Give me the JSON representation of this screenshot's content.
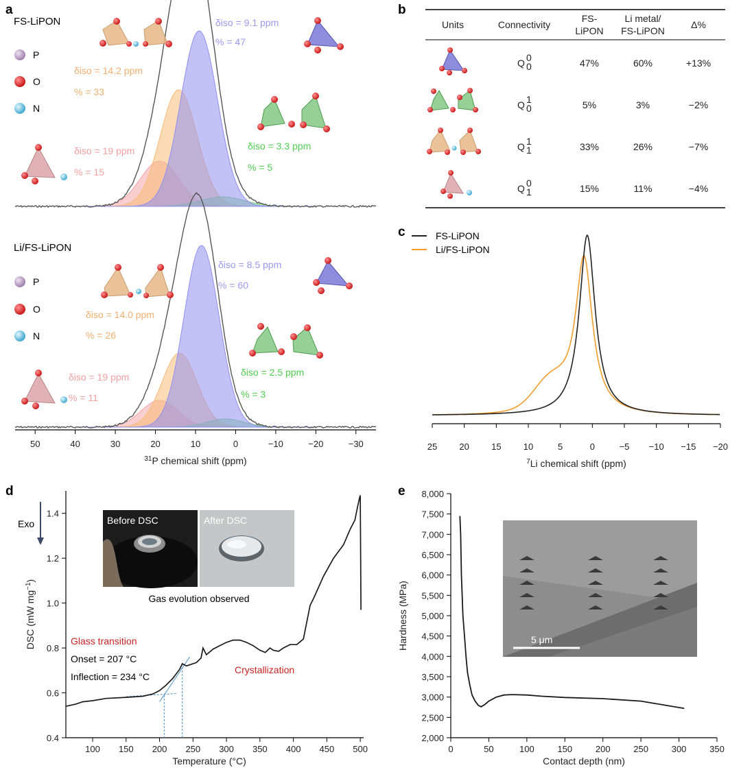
{
  "colors": {
    "P": "#b89bc2",
    "O": "#e02828",
    "N": "#5fc0e0",
    "blue": "#8f8ff0",
    "orange": "#f7bb7a",
    "pink": "#f4a5a5",
    "green": "#7ed67e",
    "exp": "#555555",
    "fs_li": "#222222",
    "li_li": "#f39c2a"
  },
  "panels": {
    "a": "a",
    "b": "b",
    "c": "c",
    "d": "d",
    "e": "e"
  },
  "legend": {
    "P": "P",
    "O": "O",
    "N": "N"
  },
  "chart_data": [
    {
      "id": "a_top",
      "type": "line",
      "title": "FS-LiPON",
      "xlabel": "31P chemical shift (ppm)",
      "xlim": [
        55,
        -35
      ],
      "xticks": [
        50,
        40,
        30,
        20,
        10,
        0,
        -10,
        -20,
        -30
      ],
      "components": [
        {
          "name": "Q00",
          "center": 9.1,
          "fraction_pct": 47,
          "label_delta": "δiso = 9.1 ppm",
          "label_pct": "% = 47",
          "color": "blue"
        },
        {
          "name": "Q10",
          "center": 3.3,
          "fraction_pct": 5,
          "label_delta": "δiso = 3.3 ppm",
          "label_pct": "% = 5",
          "color": "green"
        },
        {
          "name": "Q11",
          "center": 14.2,
          "fraction_pct": 33,
          "label_delta": "δiso = 14.2 ppm",
          "label_pct": "% = 33",
          "color": "orange"
        },
        {
          "name": "Q01",
          "center": 19,
          "fraction_pct": 15,
          "label_delta": "δiso = 19 ppm",
          "label_pct": "% = 15",
          "color": "pink"
        }
      ]
    },
    {
      "id": "a_bottom",
      "type": "line",
      "title": "Li/FS-LiPON",
      "xlabel": "31P chemical shift (ppm)",
      "xlim": [
        55,
        -35
      ],
      "xticks": [
        50,
        40,
        30,
        20,
        10,
        0,
        -10,
        -20,
        -30
      ],
      "components": [
        {
          "name": "Q00",
          "center": 8.5,
          "fraction_pct": 60,
          "label_delta": "δiso = 8.5 ppm",
          "label_pct": "% = 60",
          "color": "blue"
        },
        {
          "name": "Q10",
          "center": 2.5,
          "fraction_pct": 3,
          "label_delta": "δiso = 2.5 ppm",
          "label_pct": "% = 3",
          "color": "green"
        },
        {
          "name": "Q11",
          "center": 14.0,
          "fraction_pct": 26,
          "label_delta": "δiso = 14.0 ppm",
          "label_pct": "% = 26",
          "color": "orange"
        },
        {
          "name": "Q01",
          "center": 19,
          "fraction_pct": 11,
          "label_delta": "δiso = 19 ppm",
          "label_pct": "% = 11",
          "color": "pink"
        }
      ]
    },
    {
      "id": "b",
      "type": "table",
      "headers": [
        "Units",
        "Connectivity",
        "FS-LiPON",
        "Li metal/ FS-LiPON",
        "Δ%"
      ],
      "header_lines": {
        "fs": [
          "FS-",
          "LiPON"
        ],
        "li": [
          "Li metal/",
          "FS-LiPON"
        ]
      },
      "rows": [
        {
          "connectivity": "Q00",
          "Q": "Q",
          "sup": "0",
          "sub": "0",
          "fs": "47%",
          "li": "60%",
          "delta": "+13%"
        },
        {
          "connectivity": "Q10",
          "Q": "Q",
          "sup": "1",
          "sub": "0",
          "fs": "5%",
          "li": "3%",
          "delta": "−2%"
        },
        {
          "connectivity": "Q11",
          "Q": "Q",
          "sup": "1",
          "sub": "1",
          "fs": "33%",
          "li": "26%",
          "delta": "−7%"
        },
        {
          "connectivity": "Q01",
          "Q": "Q",
          "sup": "0",
          "sub": "1",
          "fs": "15%",
          "li": "11%",
          "delta": "−4%"
        }
      ]
    },
    {
      "id": "c",
      "type": "line",
      "xlabel": "7Li chemical shift (ppm)",
      "xlim": [
        25,
        -20
      ],
      "xticks": [
        25,
        20,
        15,
        10,
        5,
        0,
        -5,
        -10,
        -15,
        -20
      ],
      "series": [
        {
          "name": "FS-LiPON",
          "peak_ppm": 0.8,
          "color": "fs_li"
        },
        {
          "name": "Li/FS-LiPON",
          "peak_ppm": 1.3,
          "color": "li_li"
        }
      ]
    },
    {
      "id": "d",
      "type": "line",
      "xlabel": "Temperature (°C)",
      "ylabel": "DSC (mW mg−1)",
      "xlim": [
        60,
        505
      ],
      "ylim": [
        0.4,
        1.5
      ],
      "xticks": [
        100,
        150,
        200,
        250,
        300,
        350,
        400,
        450,
        500
      ],
      "yticks": [
        0.4,
        0.6,
        0.8,
        1.0,
        1.2,
        1.4
      ],
      "x": [
        60,
        75,
        85,
        100,
        120,
        150,
        175,
        190,
        200,
        210,
        220,
        230,
        234,
        240,
        255,
        262,
        265,
        270,
        280,
        290,
        300,
        310,
        320,
        330,
        340,
        350,
        358,
        365,
        370,
        378,
        385,
        395,
        405,
        415,
        425,
        430,
        445,
        460,
        475,
        485,
        492,
        496,
        499,
        500,
        501
      ],
      "y": [
        0.54,
        0.55,
        0.56,
        0.565,
        0.575,
        0.58,
        0.585,
        0.595,
        0.61,
        0.635,
        0.665,
        0.705,
        0.73,
        0.72,
        0.735,
        0.755,
        0.8,
        0.77,
        0.795,
        0.81,
        0.825,
        0.835,
        0.835,
        0.825,
        0.81,
        0.79,
        0.78,
        0.8,
        0.79,
        0.785,
        0.8,
        0.815,
        0.815,
        0.84,
        0.99,
        1.02,
        1.12,
        1.2,
        1.26,
        1.33,
        1.37,
        1.43,
        1.47,
        1.48,
        0.97
      ],
      "exo_label": "Exo",
      "annotations": {
        "glass": "Glass transition",
        "onset": "Onset = 207 °C",
        "inflection": "Inflection = 234 °C",
        "cryst": "Crystallization",
        "before": "Before DSC",
        "after": "After DSC",
        "gas": "Gas evolution observed"
      },
      "onset_c": 207,
      "inflection_c": 234
    },
    {
      "id": "e",
      "type": "line",
      "xlabel": "Contact depth (nm)",
      "ylabel": "Hardness (MPa)",
      "xlim": [
        0,
        350
      ],
      "ylim": [
        2000,
        8000
      ],
      "xticks": [
        0,
        50,
        100,
        150,
        200,
        250,
        300,
        350
      ],
      "yticks": [
        2000,
        2500,
        3000,
        3500,
        4000,
        4500,
        5000,
        5500,
        6000,
        6500,
        7000,
        7500,
        8000
      ],
      "x": [
        12,
        13,
        14,
        16,
        18,
        20,
        22,
        25,
        28,
        32,
        36,
        40,
        45,
        50,
        60,
        70,
        80,
        100,
        120,
        150,
        200,
        250,
        307
      ],
      "y": [
        7450,
        7000,
        6000,
        5000,
        4500,
        4000,
        3600,
        3300,
        3050,
        2900,
        2800,
        2760,
        2820,
        2900,
        3000,
        3050,
        3060,
        3050,
        3020,
        2990,
        2960,
        2900,
        2720
      ],
      "scale_bar": "5 μm"
    }
  ]
}
